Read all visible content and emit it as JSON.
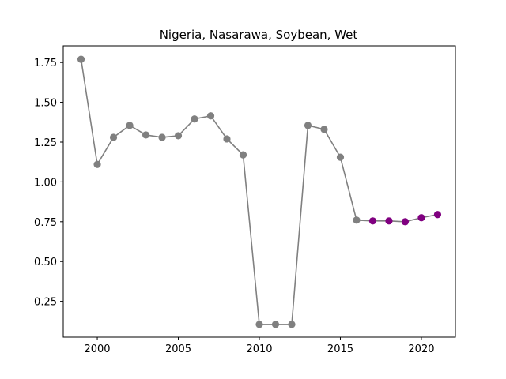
{
  "chart_data": {
    "type": "line",
    "title": "Nigeria, Nasarawa, Soybean, Wet",
    "xlabel": "",
    "ylabel": "",
    "xlim": [
      1997.9,
      2022.1
    ],
    "ylim": [
      0.025,
      1.855
    ],
    "xticks": [
      2000,
      2005,
      2010,
      2015,
      2020
    ],
    "yticks": [
      0.25,
      0.5,
      0.75,
      1.0,
      1.25,
      1.5,
      1.75
    ],
    "xtick_labels": [
      "2000",
      "2005",
      "2010",
      "2015",
      "2020"
    ],
    "ytick_labels": [
      "0.25",
      "0.50",
      "0.75",
      "1.00",
      "1.25",
      "1.50",
      "1.75"
    ],
    "grid": false,
    "series": [
      {
        "line_color": "#808080",
        "x": [
          1999,
          2000,
          2001,
          2002,
          2003,
          2004,
          2005,
          2006,
          2007,
          2008,
          2009,
          2010,
          2011,
          2012,
          2013,
          2014,
          2015,
          2016,
          2017,
          2018,
          2019,
          2020,
          2021
        ],
        "y": [
          1.77,
          1.11,
          1.28,
          1.355,
          1.295,
          1.28,
          1.29,
          1.395,
          1.415,
          1.27,
          1.17,
          0.105,
          0.105,
          0.105,
          1.355,
          1.33,
          1.155,
          0.76,
          0.755,
          0.755,
          0.75,
          0.775,
          0.795
        ],
        "marker_colors": [
          "#808080",
          "#808080",
          "#808080",
          "#808080",
          "#808080",
          "#808080",
          "#808080",
          "#808080",
          "#808080",
          "#808080",
          "#808080",
          "#808080",
          "#808080",
          "#808080",
          "#808080",
          "#808080",
          "#808080",
          "#808080",
          "#800080",
          "#800080",
          "#800080",
          "#800080",
          "#800080"
        ]
      }
    ]
  }
}
